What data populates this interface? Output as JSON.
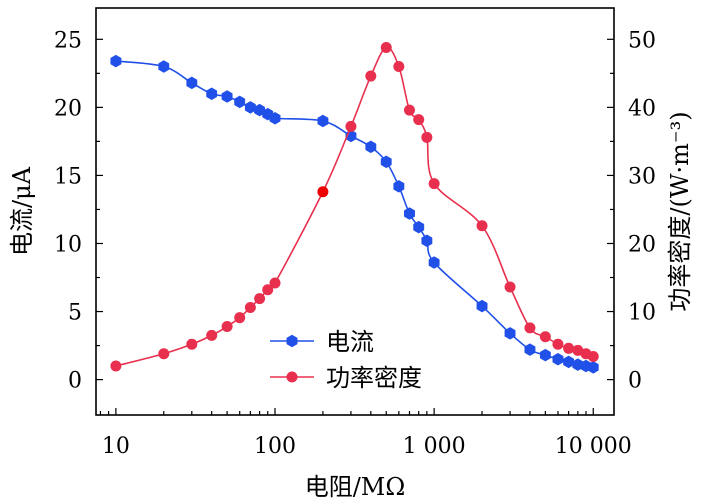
{
  "chart_data": {
    "type": "line",
    "xscale": "log",
    "xlim": [
      7.5,
      13500
    ],
    "xticks": [
      {
        "value": 10,
        "label": "10"
      },
      {
        "value": 100,
        "label": "100"
      },
      {
        "value": 1000,
        "label": "1 000"
      },
      {
        "value": 10000,
        "label": "10 000"
      }
    ],
    "xlabel": "电阻/MΩ",
    "ylabel_left": "电流/μA",
    "ylabel_right": "功率密度/(W·m⁻³)",
    "ylim_left": [
      -2.6,
      27.3
    ],
    "ylim_right": [
      -5.2,
      54.6
    ],
    "yticks_left": [
      0,
      5,
      10,
      15,
      20,
      25
    ],
    "yticks_right": [
      0,
      10,
      20,
      30,
      40,
      50
    ],
    "legend_position": "lower-center",
    "colors": {
      "current": "#2050e8",
      "power": "#e8304e",
      "highlight": "#ee0000"
    },
    "series": [
      {
        "name": "电流",
        "axis": "left",
        "marker": "hexagon",
        "x": [
          10,
          20,
          30,
          40,
          50,
          60,
          70,
          80,
          90,
          100,
          200,
          300,
          400,
          500,
          600,
          700,
          800,
          900,
          1000,
          2000,
          3000,
          4000,
          5000,
          6000,
          7000,
          8000,
          9000,
          10000
        ],
        "values": [
          23.4,
          23.0,
          21.8,
          21.0,
          20.8,
          20.4,
          20.0,
          19.8,
          19.5,
          19.2,
          19.0,
          17.9,
          17.1,
          16.0,
          14.2,
          12.2,
          11.2,
          10.2,
          8.6,
          5.4,
          3.4,
          2.2,
          1.8,
          1.5,
          1.3,
          1.1,
          1.0,
          0.9
        ]
      },
      {
        "name": "功率密度",
        "axis": "right",
        "marker": "circle",
        "highlight_x": 200,
        "x": [
          10,
          20,
          30,
          40,
          50,
          60,
          70,
          80,
          90,
          100,
          200,
          300,
          400,
          500,
          600,
          700,
          800,
          900,
          1000,
          2000,
          3000,
          4000,
          5000,
          6000,
          7000,
          8000,
          9000,
          10000
        ],
        "values": [
          2.0,
          3.8,
          5.2,
          6.5,
          7.8,
          9.1,
          10.6,
          11.9,
          13.2,
          14.2,
          27.6,
          37.2,
          44.6,
          48.8,
          46.0,
          39.6,
          38.2,
          35.6,
          28.8,
          22.6,
          13.6,
          7.6,
          6.3,
          5.2,
          4.6,
          4.3,
          3.8,
          3.4
        ]
      }
    ]
  }
}
